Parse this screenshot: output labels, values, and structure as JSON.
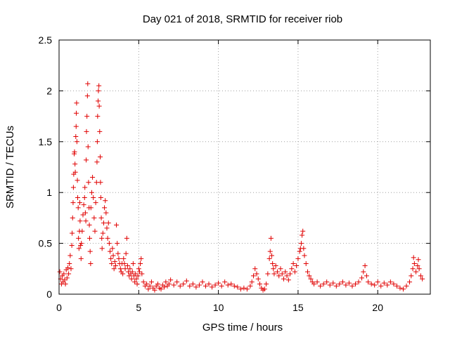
{
  "chart_data": {
    "type": "scatter",
    "title": "Day 021 of 2018, SRMTID for receiver riob",
    "xlabel": "GPS time / hours",
    "ylabel": "SRMTID / TECUs",
    "xlim": [
      0,
      23.3
    ],
    "ylim": [
      0,
      2.5
    ],
    "x_ticks": [
      0,
      5,
      10,
      15,
      20
    ],
    "x_tick_labels": [
      "0",
      "5",
      "10",
      "15",
      "20"
    ],
    "y_ticks": [
      0,
      0.5,
      1,
      1.5,
      2,
      2.5
    ],
    "y_tick_labels": [
      "0",
      "0.5",
      "1",
      "1.5",
      "2",
      "2.5"
    ],
    "grid": true,
    "marker": "+",
    "color": "#e00000",
    "series": [
      {
        "name": "SRMTID",
        "points": [
          [
            0.05,
            0.22
          ],
          [
            0.1,
            0.15
          ],
          [
            0.15,
            0.1
          ],
          [
            0.2,
            0.18
          ],
          [
            0.25,
            0.12
          ],
          [
            0.3,
            0.2
          ],
          [
            0.35,
            0.14
          ],
          [
            0.4,
            0.1
          ],
          [
            0.45,
            0.24
          ],
          [
            0.5,
            0.16
          ],
          [
            0.55,
            0.26
          ],
          [
            0.6,
            0.2
          ],
          [
            0.65,
            0.3
          ],
          [
            0.7,
            0.38
          ],
          [
            0.75,
            0.25
          ],
          [
            0.8,
            0.48
          ],
          [
            0.82,
            0.6
          ],
          [
            0.85,
            0.75
          ],
          [
            0.88,
            0.9
          ],
          [
            0.9,
            1.05
          ],
          [
            0.92,
            1.18
          ],
          [
            0.95,
            1.38
          ],
          [
            0.97,
            1.4
          ],
          [
            1.0,
            1.28
          ],
          [
            1.02,
            1.2
          ],
          [
            1.05,
            1.55
          ],
          [
            1.07,
            1.65
          ],
          [
            1.08,
            1.78
          ],
          [
            1.1,
            1.88
          ],
          [
            1.12,
            1.5
          ],
          [
            1.15,
            1.12
          ],
          [
            1.17,
            0.95
          ],
          [
            1.2,
            0.85
          ],
          [
            1.22,
            0.55
          ],
          [
            1.25,
            0.45
          ],
          [
            1.28,
            0.62
          ],
          [
            1.3,
            0.9
          ],
          [
            1.32,
            0.72
          ],
          [
            1.35,
            0.48
          ],
          [
            1.38,
            0.35
          ],
          [
            1.4,
            0.5
          ],
          [
            1.45,
            0.62
          ],
          [
            1.5,
            0.78
          ],
          [
            1.55,
            0.88
          ],
          [
            1.6,
            0.95
          ],
          [
            1.62,
            1.05
          ],
          [
            1.65,
            0.8
          ],
          [
            1.68,
            0.72
          ],
          [
            1.7,
            1.32
          ],
          [
            1.72,
            1.6
          ],
          [
            1.75,
            1.75
          ],
          [
            1.78,
            1.95
          ],
          [
            1.8,
            2.07
          ],
          [
            1.82,
            1.45
          ],
          [
            1.85,
            1.1
          ],
          [
            1.88,
            0.85
          ],
          [
            1.9,
            0.68
          ],
          [
            1.92,
            0.55
          ],
          [
            1.95,
            0.42
          ],
          [
            1.98,
            0.3
          ],
          [
            2.0,
            0.85
          ],
          [
            2.05,
            1.0
          ],
          [
            2.1,
            1.15
          ],
          [
            2.15,
            0.95
          ],
          [
            2.2,
            0.75
          ],
          [
            2.25,
            0.62
          ],
          [
            2.3,
            0.9
          ],
          [
            2.35,
            1.1
          ],
          [
            2.38,
            1.3
          ],
          [
            2.4,
            1.5
          ],
          [
            2.42,
            1.75
          ],
          [
            2.45,
            1.9
          ],
          [
            2.47,
            2.0
          ],
          [
            2.5,
            2.05
          ],
          [
            2.52,
            1.85
          ],
          [
            2.55,
            1.6
          ],
          [
            2.58,
            1.35
          ],
          [
            2.6,
            1.1
          ],
          [
            2.62,
            0.95
          ],
          [
            2.65,
            0.75
          ],
          [
            2.68,
            0.55
          ],
          [
            2.7,
            0.45
          ],
          [
            2.75,
            0.6
          ],
          [
            2.8,
            0.7
          ],
          [
            2.85,
            0.85
          ],
          [
            2.9,
            0.92
          ],
          [
            2.95,
            0.8
          ],
          [
            3.0,
            0.65
          ],
          [
            3.05,
            0.55
          ],
          [
            3.1,
            0.7
          ],
          [
            3.15,
            0.5
          ],
          [
            3.2,
            0.42
          ],
          [
            3.25,
            0.35
          ],
          [
            3.3,
            0.3
          ],
          [
            3.35,
            0.45
          ],
          [
            3.4,
            0.38
          ],
          [
            3.45,
            0.25
          ],
          [
            3.5,
            0.32
          ],
          [
            3.55,
            0.28
          ],
          [
            3.6,
            0.68
          ],
          [
            3.65,
            0.5
          ],
          [
            3.7,
            0.4
          ],
          [
            3.75,
            0.35
          ],
          [
            3.8,
            0.3
          ],
          [
            3.85,
            0.25
          ],
          [
            3.9,
            0.22
          ],
          [
            3.95,
            0.3
          ],
          [
            4.0,
            0.2
          ],
          [
            4.05,
            0.35
          ],
          [
            4.1,
            0.3
          ],
          [
            4.15,
            0.25
          ],
          [
            4.2,
            0.4
          ],
          [
            4.25,
            0.55
          ],
          [
            4.3,
            0.28
          ],
          [
            4.35,
            0.22
          ],
          [
            4.4,
            0.18
          ],
          [
            4.45,
            0.25
          ],
          [
            4.5,
            0.2
          ],
          [
            4.55,
            0.15
          ],
          [
            4.6,
            0.22
          ],
          [
            4.65,
            0.3
          ],
          [
            4.7,
            0.18
          ],
          [
            4.75,
            0.12
          ],
          [
            4.8,
            0.2
          ],
          [
            4.85,
            0.15
          ],
          [
            4.9,
            0.1
          ],
          [
            4.95,
            0.18
          ],
          [
            5.0,
            0.25
          ],
          [
            5.05,
            0.22
          ],
          [
            5.1,
            0.3
          ],
          [
            5.15,
            0.35
          ],
          [
            5.2,
            0.2
          ],
          [
            5.3,
            0.12
          ],
          [
            5.4,
            0.08
          ],
          [
            5.5,
            0.1
          ],
          [
            5.6,
            0.05
          ],
          [
            5.7,
            0.08
          ],
          [
            5.8,
            0.12
          ],
          [
            5.9,
            0.06
          ],
          [
            6.0,
            0.04
          ],
          [
            6.1,
            0.08
          ],
          [
            6.2,
            0.1
          ],
          [
            6.3,
            0.06
          ],
          [
            6.4,
            0.05
          ],
          [
            6.5,
            0.09
          ],
          [
            6.6,
            0.07
          ],
          [
            6.7,
            0.12
          ],
          [
            6.8,
            0.08
          ],
          [
            6.9,
            0.1
          ],
          [
            7.0,
            0.14
          ],
          [
            7.2,
            0.09
          ],
          [
            7.4,
            0.12
          ],
          [
            7.6,
            0.08
          ],
          [
            7.8,
            0.1
          ],
          [
            8.0,
            0.13
          ],
          [
            8.2,
            0.08
          ],
          [
            8.4,
            0.1
          ],
          [
            8.6,
            0.07
          ],
          [
            8.8,
            0.09
          ],
          [
            9.0,
            0.12
          ],
          [
            9.2,
            0.08
          ],
          [
            9.4,
            0.1
          ],
          [
            9.6,
            0.07
          ],
          [
            9.8,
            0.09
          ],
          [
            10.0,
            0.11
          ],
          [
            10.2,
            0.08
          ],
          [
            10.4,
            0.12
          ],
          [
            10.6,
            0.09
          ],
          [
            10.8,
            0.1
          ],
          [
            11.0,
            0.08
          ],
          [
            11.2,
            0.07
          ],
          [
            11.4,
            0.05
          ],
          [
            11.6,
            0.06
          ],
          [
            11.8,
            0.05
          ],
          [
            12.0,
            0.08
          ],
          [
            12.1,
            0.12
          ],
          [
            12.2,
            0.18
          ],
          [
            12.3,
            0.25
          ],
          [
            12.4,
            0.2
          ],
          [
            12.5,
            0.15
          ],
          [
            12.6,
            0.1
          ],
          [
            12.7,
            0.06
          ],
          [
            12.8,
            0.04
          ],
          [
            12.9,
            0.05
          ],
          [
            13.0,
            0.1
          ],
          [
            13.1,
            0.2
          ],
          [
            13.2,
            0.35
          ],
          [
            13.25,
            0.42
          ],
          [
            13.3,
            0.55
          ],
          [
            13.35,
            0.38
          ],
          [
            13.4,
            0.3
          ],
          [
            13.45,
            0.25
          ],
          [
            13.5,
            0.2
          ],
          [
            13.6,
            0.28
          ],
          [
            13.7,
            0.22
          ],
          [
            13.8,
            0.18
          ],
          [
            13.9,
            0.25
          ],
          [
            14.0,
            0.2
          ],
          [
            14.1,
            0.15
          ],
          [
            14.2,
            0.22
          ],
          [
            14.3,
            0.18
          ],
          [
            14.4,
            0.14
          ],
          [
            14.5,
            0.2
          ],
          [
            14.6,
            0.25
          ],
          [
            14.7,
            0.3
          ],
          [
            14.8,
            0.22
          ],
          [
            14.9,
            0.28
          ],
          [
            15.0,
            0.35
          ],
          [
            15.1,
            0.42
          ],
          [
            15.15,
            0.45
          ],
          [
            15.2,
            0.5
          ],
          [
            15.25,
            0.58
          ],
          [
            15.3,
            0.62
          ],
          [
            15.35,
            0.45
          ],
          [
            15.4,
            0.38
          ],
          [
            15.5,
            0.3
          ],
          [
            15.6,
            0.22
          ],
          [
            15.7,
            0.18
          ],
          [
            15.8,
            0.15
          ],
          [
            15.9,
            0.12
          ],
          [
            16.0,
            0.1
          ],
          [
            16.2,
            0.12
          ],
          [
            16.4,
            0.08
          ],
          [
            16.6,
            0.1
          ],
          [
            16.8,
            0.12
          ],
          [
            17.0,
            0.09
          ],
          [
            17.2,
            0.11
          ],
          [
            17.4,
            0.08
          ],
          [
            17.6,
            0.1
          ],
          [
            17.8,
            0.12
          ],
          [
            18.0,
            0.09
          ],
          [
            18.2,
            0.11
          ],
          [
            18.4,
            0.08
          ],
          [
            18.6,
            0.1
          ],
          [
            18.8,
            0.12
          ],
          [
            19.0,
            0.16
          ],
          [
            19.1,
            0.22
          ],
          [
            19.2,
            0.28
          ],
          [
            19.3,
            0.18
          ],
          [
            19.4,
            0.12
          ],
          [
            19.6,
            0.1
          ],
          [
            19.8,
            0.09
          ],
          [
            20.0,
            0.12
          ],
          [
            20.2,
            0.08
          ],
          [
            20.4,
            0.11
          ],
          [
            20.6,
            0.09
          ],
          [
            20.8,
            0.12
          ],
          [
            21.0,
            0.1
          ],
          [
            21.2,
            0.08
          ],
          [
            21.4,
            0.06
          ],
          [
            21.6,
            0.05
          ],
          [
            21.8,
            0.08
          ],
          [
            22.0,
            0.12
          ],
          [
            22.1,
            0.18
          ],
          [
            22.2,
            0.25
          ],
          [
            22.25,
            0.36
          ],
          [
            22.3,
            0.3
          ],
          [
            22.4,
            0.22
          ],
          [
            22.5,
            0.28
          ],
          [
            22.55,
            0.34
          ],
          [
            22.6,
            0.25
          ],
          [
            22.7,
            0.18
          ],
          [
            22.8,
            0.15
          ]
        ]
      }
    ]
  }
}
